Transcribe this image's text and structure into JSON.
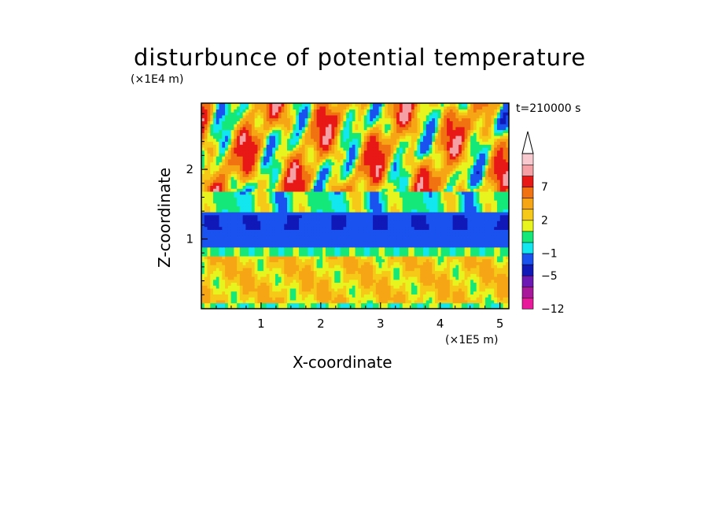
{
  "chart_data": {
    "type": "heatmap",
    "title": "disturbunce of potential temperature",
    "xlabel": "X-coordinate",
    "ylabel": "Z-coordinate",
    "x_units": "(×1E5 m)",
    "y_units": "(×1E4 m)",
    "time_label": "t=210000 s",
    "xlim": [
      0,
      5.15
    ],
    "ylim": [
      0,
      2.95
    ],
    "x_ticks": [
      "1",
      "2",
      "3",
      "4",
      "5"
    ],
    "x_tick_values": [
      1,
      2,
      3,
      4,
      5
    ],
    "y_ticks": [
      "1",
      "2"
    ],
    "y_tick_values": [
      1,
      2
    ],
    "colorbar": {
      "levels": [
        -12,
        -9,
        -7,
        -5,
        -3,
        -1,
        0,
        1,
        2,
        3,
        5,
        7,
        9,
        11
      ],
      "tick_labels": [
        "-12",
        "-5",
        "-1",
        "2",
        "7"
      ],
      "tick_values": [
        -12,
        -5,
        -1,
        2,
        7
      ],
      "colors": [
        "#e8199a",
        "#a8189a",
        "#6c18b4",
        "#1018b8",
        "#1a52f0",
        "#12e6ee",
        "#14e878",
        "#e8f41e",
        "#f6c818",
        "#f6a614",
        "#f07210",
        "#e81816",
        "#f4a0a4",
        "#f8cad0"
      ],
      "extend": "max"
    },
    "dominant_bands": [
      {
        "z_range": [
          0.0,
          0.1
        ],
        "value": 0.5
      },
      {
        "z_range": [
          0.1,
          0.75
        ],
        "value": 2.5
      },
      {
        "z_range": [
          0.75,
          0.9
        ],
        "value": 0.5
      },
      {
        "z_range": [
          0.9,
          1.4
        ],
        "value": -2.0
      },
      {
        "z_range": [
          1.4,
          1.7
        ],
        "value": 0.5
      },
      {
        "z_range": [
          1.7,
          2.95
        ],
        "value": 4.0
      }
    ]
  }
}
